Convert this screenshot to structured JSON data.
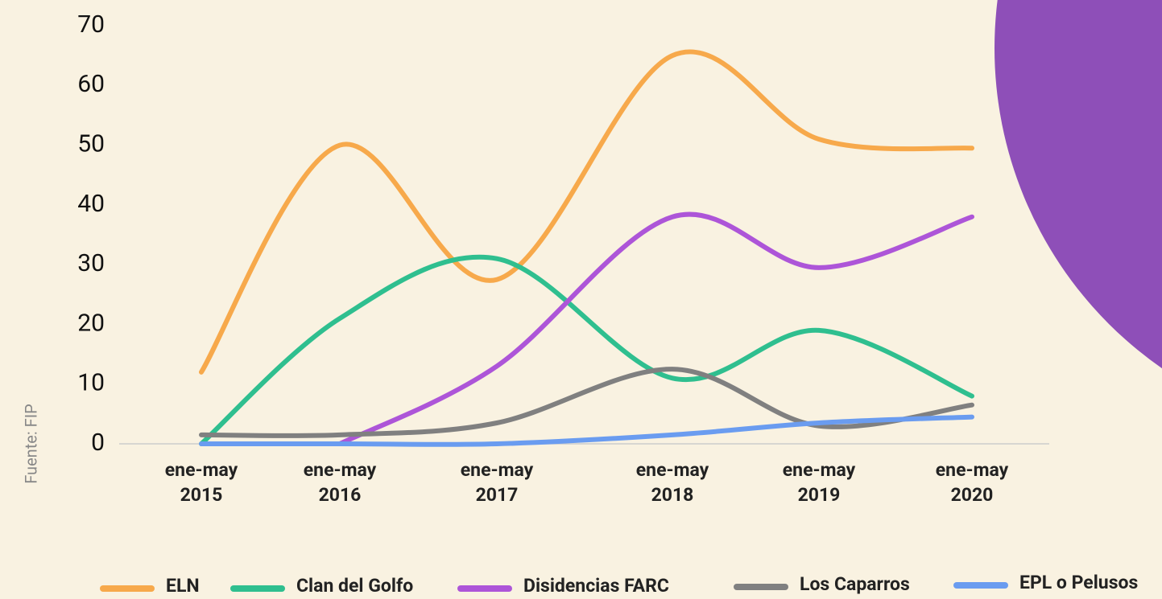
{
  "chart_data": {
    "type": "line",
    "source": "Fuente: FIP",
    "categories": [
      "ene-may 2015",
      "ene-may 2016",
      "ene-may 2017",
      "ene-may 2018",
      "ene-may 2019",
      "ene-may 2020"
    ],
    "series": [
      {
        "name": "ELN",
        "color": "#f7a94b",
        "values": [
          12,
          50,
          27.5,
          65,
          51,
          49.5
        ]
      },
      {
        "name": "Clan del Golfo",
        "color": "#2fbf8f",
        "values": [
          0,
          21,
          31,
          11,
          19,
          8
        ]
      },
      {
        "name": "Disidencias FARC",
        "color": "#ad55d8",
        "values": [
          null,
          0,
          13,
          38,
          29.5,
          38
        ]
      },
      {
        "name": "Los Caparros",
        "color": "#808080",
        "values": [
          1.5,
          1.5,
          3.5,
          12.5,
          3,
          6.5
        ]
      },
      {
        "name": "EPL o Pelusos",
        "color": "#6a9cf0",
        "values": [
          0,
          0,
          0,
          1.5,
          3.5,
          4.5
        ]
      }
    ],
    "ylim": [
      0,
      70
    ],
    "yticks": [
      0,
      10,
      20,
      30,
      40,
      50,
      60,
      70
    ],
    "grid": false
  }
}
